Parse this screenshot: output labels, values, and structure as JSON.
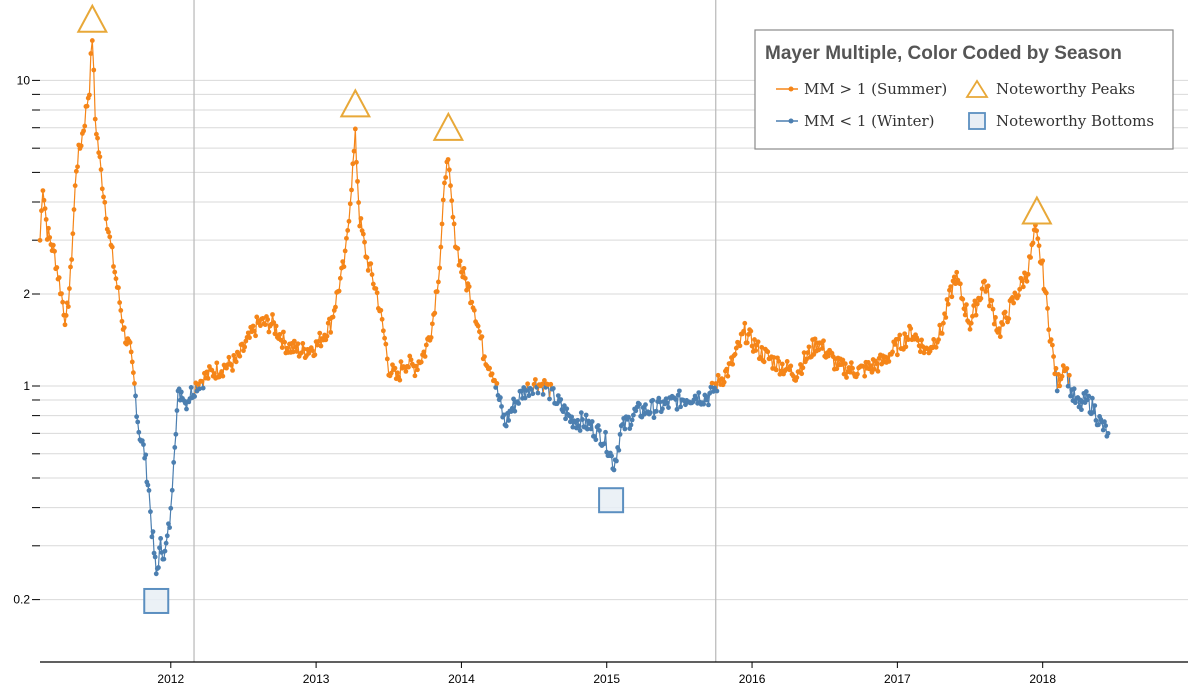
{
  "colors": {
    "summer": "#f58518",
    "winter": "#4c7fb0",
    "peak_marker": "#e8a838",
    "bottom_marker": "#5b8fc0",
    "bottom_fill": "#e8eef5"
  },
  "chart_data": {
    "type": "line",
    "title": "Mayer Multiple, Color Coded by Season",
    "xlabel": "",
    "ylabel": "",
    "y_scale": "log",
    "ylim": [
      0.125,
      16
    ],
    "xlim": [
      2011.1,
      2019.0
    ],
    "y_tick_labels": [
      {
        "value": 0.2,
        "label": "0.2"
      },
      {
        "value": 1,
        "label": "1"
      },
      {
        "value": 2,
        "label": "2"
      },
      {
        "value": 10,
        "label": "10"
      }
    ],
    "y_minor_ticks": [
      0.3,
      0.4,
      0.5,
      0.6,
      0.7,
      0.8,
      0.9,
      3,
      4,
      5,
      6,
      7,
      8,
      9
    ],
    "x_ticks": [
      {
        "value": 2012,
        "label": "2012"
      },
      {
        "value": 2013,
        "label": "2013"
      },
      {
        "value": 2014,
        "label": "2014"
      },
      {
        "value": 2015,
        "label": "2015"
      },
      {
        "value": 2016,
        "label": "2016"
      },
      {
        "value": 2017,
        "label": "2017"
      },
      {
        "value": 2018,
        "label": "2018"
      }
    ],
    "season_boundaries": [
      2012.16,
      2015.75
    ],
    "series_anchors": [
      [
        2011.1,
        3.0
      ],
      [
        2011.12,
        4.6
      ],
      [
        2011.15,
        3.2
      ],
      [
        2011.2,
        2.7
      ],
      [
        2011.24,
        2.1
      ],
      [
        2011.28,
        1.6
      ],
      [
        2011.31,
        2.3
      ],
      [
        2011.35,
        5.2
      ],
      [
        2011.4,
        7.0
      ],
      [
        2011.44,
        9.5
      ],
      [
        2011.46,
        14.0
      ],
      [
        2011.48,
        7.5
      ],
      [
        2011.52,
        5.0
      ],
      [
        2011.58,
        3.0
      ],
      [
        2011.64,
        2.0
      ],
      [
        2011.68,
        1.5
      ],
      [
        2011.72,
        1.3
      ],
      [
        2011.75,
        1.0
      ],
      [
        2011.78,
        0.72
      ],
      [
        2011.82,
        0.6
      ],
      [
        2011.85,
        0.45
      ],
      [
        2011.87,
        0.34
      ],
      [
        2011.9,
        0.24
      ],
      [
        2011.93,
        0.3
      ],
      [
        2011.96,
        0.28
      ],
      [
        2012.0,
        0.38
      ],
      [
        2012.02,
        0.6
      ],
      [
        2012.05,
        0.92
      ],
      [
        2012.08,
        0.97
      ],
      [
        2012.1,
        0.88
      ],
      [
        2012.14,
        0.95
      ],
      [
        2012.18,
        1.02
      ],
      [
        2012.3,
        1.12
      ],
      [
        2012.45,
        1.2
      ],
      [
        2012.6,
        1.6
      ],
      [
        2012.7,
        1.6
      ],
      [
        2012.8,
        1.35
      ],
      [
        2012.9,
        1.3
      ],
      [
        2013.0,
        1.35
      ],
      [
        2013.1,
        1.6
      ],
      [
        2013.2,
        2.6
      ],
      [
        2013.27,
        6.5
      ],
      [
        2013.3,
        3.5
      ],
      [
        2013.35,
        2.6
      ],
      [
        2013.42,
        2.0
      ],
      [
        2013.48,
        1.35
      ],
      [
        2013.5,
        1.15
      ],
      [
        2013.56,
        1.05
      ],
      [
        2013.6,
        1.2
      ],
      [
        2013.68,
        1.15
      ],
      [
        2013.75,
        1.3
      ],
      [
        2013.8,
        1.6
      ],
      [
        2013.85,
        2.5
      ],
      [
        2013.9,
        5.8
      ],
      [
        2013.95,
        3.2
      ],
      [
        2014.0,
        2.4
      ],
      [
        2014.08,
        1.9
      ],
      [
        2014.15,
        1.3
      ],
      [
        2014.22,
        1.1
      ],
      [
        2014.26,
        0.9
      ],
      [
        2014.3,
        0.75
      ],
      [
        2014.35,
        0.85
      ],
      [
        2014.42,
        0.95
      ],
      [
        2014.5,
        1.02
      ],
      [
        2014.58,
        1.0
      ],
      [
        2014.65,
        0.9
      ],
      [
        2014.75,
        0.78
      ],
      [
        2014.85,
        0.76
      ],
      [
        2014.95,
        0.7
      ],
      [
        2015.0,
        0.65
      ],
      [
        2015.05,
        0.55
      ],
      [
        2015.1,
        0.72
      ],
      [
        2015.2,
        0.82
      ],
      [
        2015.35,
        0.85
      ],
      [
        2015.5,
        0.9
      ],
      [
        2015.6,
        0.93
      ],
      [
        2015.7,
        0.92
      ],
      [
        2015.75,
        1.0
      ],
      [
        2015.85,
        1.15
      ],
      [
        2015.95,
        1.5
      ],
      [
        2016.05,
        1.3
      ],
      [
        2016.15,
        1.2
      ],
      [
        2016.3,
        1.1
      ],
      [
        2016.45,
        1.4
      ],
      [
        2016.6,
        1.15
      ],
      [
        2016.75,
        1.12
      ],
      [
        2016.9,
        1.2
      ],
      [
        2017.0,
        1.35
      ],
      [
        2017.1,
        1.5
      ],
      [
        2017.2,
        1.3
      ],
      [
        2017.3,
        1.5
      ],
      [
        2017.4,
        2.3
      ],
      [
        2017.5,
        1.6
      ],
      [
        2017.6,
        2.2
      ],
      [
        2017.7,
        1.5
      ],
      [
        2017.8,
        1.9
      ],
      [
        2017.9,
        2.4
      ],
      [
        2017.95,
        3.2
      ],
      [
        2018.0,
        2.4
      ],
      [
        2018.05,
        1.5
      ],
      [
        2018.1,
        1.0
      ],
      [
        2018.15,
        1.2
      ],
      [
        2018.2,
        0.95
      ],
      [
        2018.25,
        0.85
      ],
      [
        2018.3,
        0.9
      ],
      [
        2018.35,
        0.85
      ],
      [
        2018.4,
        0.75
      ],
      [
        2018.45,
        0.7
      ]
    ],
    "peaks": [
      {
        "x": 2011.46,
        "y": 14.0
      },
      {
        "x": 2013.27,
        "y": 7.4
      },
      {
        "x": 2013.91,
        "y": 6.2
      },
      {
        "x": 2017.96,
        "y": 3.3
      }
    ],
    "bottoms": [
      {
        "x": 2011.9,
        "y": 0.22
      },
      {
        "x": 2015.03,
        "y": 0.47
      }
    ],
    "legend": {
      "summer_label": "MM > 1 (Summer)",
      "winter_label": "MM < 1 (Winter)",
      "peaks_label": "Noteworthy Peaks",
      "bottoms_label": "Noteworthy Bottoms"
    }
  }
}
